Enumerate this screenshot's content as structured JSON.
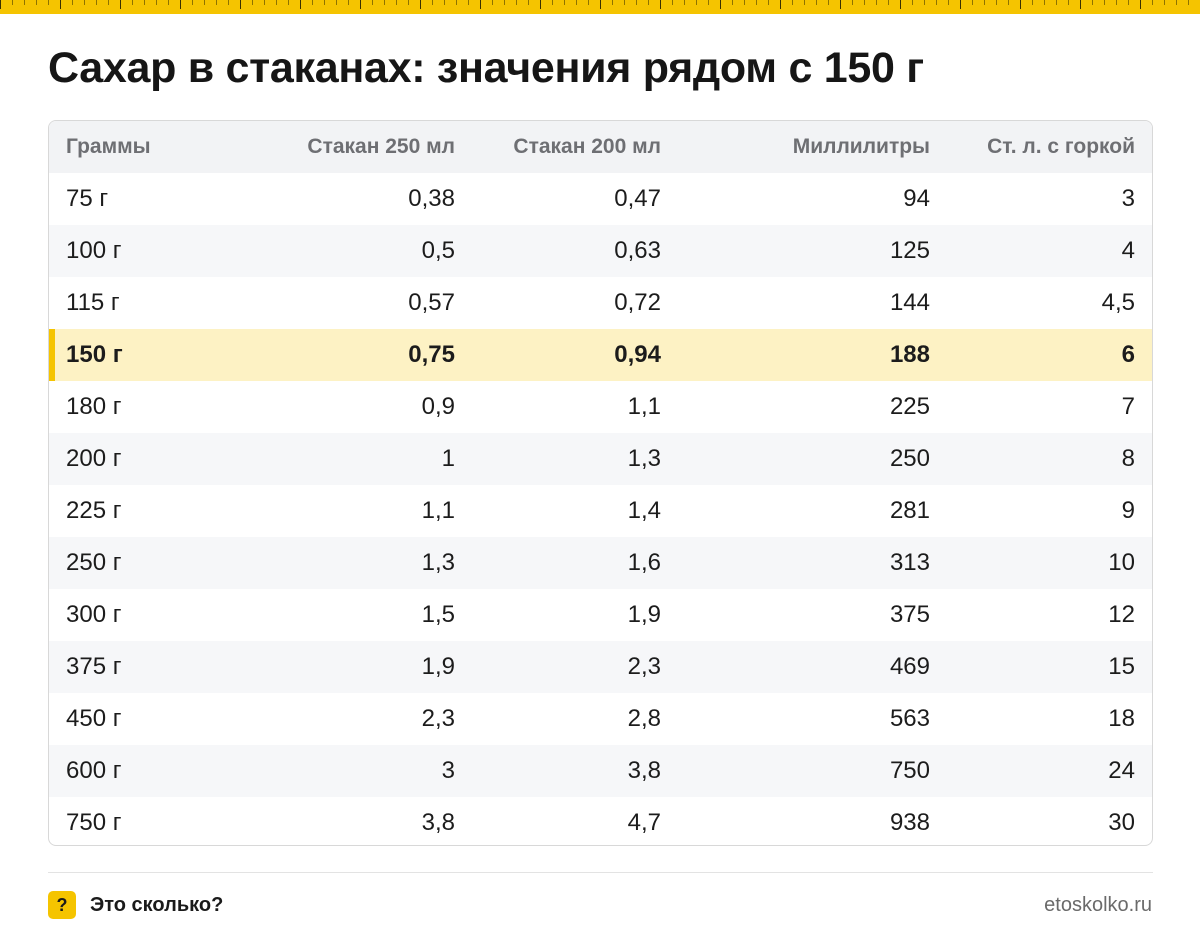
{
  "title": "Сахар в стаканах: значения рядом с 150 г",
  "colors": {
    "accent": "#f5c400",
    "highlight_row": "#fdf2c4",
    "header_bg": "#f2f3f5"
  },
  "table": {
    "headers": [
      "Граммы",
      "Стакан 250 мл",
      "Стакан 200 мл",
      "Миллилитры",
      "Ст. л. с горкой"
    ],
    "highlight_index": 3,
    "rows": [
      [
        "75 г",
        "0,38",
        "0,47",
        "94",
        "3"
      ],
      [
        "100 г",
        "0,5",
        "0,63",
        "125",
        "4"
      ],
      [
        "115 г",
        "0,57",
        "0,72",
        "144",
        "4,5"
      ],
      [
        "150 г",
        "0,75",
        "0,94",
        "188",
        "6"
      ],
      [
        "180 г",
        "0,9",
        "1,1",
        "225",
        "7"
      ],
      [
        "200 г",
        "1",
        "1,3",
        "250",
        "8"
      ],
      [
        "225 г",
        "1,1",
        "1,4",
        "281",
        "9"
      ],
      [
        "250 г",
        "1,3",
        "1,6",
        "313",
        "10"
      ],
      [
        "300 г",
        "1,5",
        "1,9",
        "375",
        "12"
      ],
      [
        "375 г",
        "1,9",
        "2,3",
        "469",
        "15"
      ],
      [
        "450 г",
        "2,3",
        "2,8",
        "563",
        "18"
      ],
      [
        "600 г",
        "3",
        "3,8",
        "750",
        "24"
      ],
      [
        "750 г",
        "3,8",
        "4,7",
        "938",
        "30"
      ]
    ]
  },
  "footer": {
    "badge": "?",
    "brand": "Это сколько?",
    "site": "etoskolko.ru"
  }
}
